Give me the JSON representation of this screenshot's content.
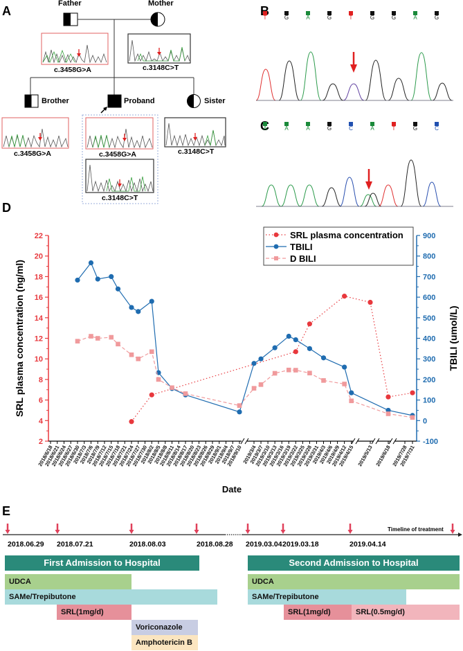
{
  "panels": {
    "A": "A",
    "B": "B",
    "C": "C",
    "D": "D",
    "E": "E"
  },
  "pedigree": {
    "father": "Father",
    "mother": "Mother",
    "brother": "Brother",
    "proband": "Proband",
    "sister": "Sister",
    "father_mutation": "c.3458G>A",
    "mother_mutation": "c.3148C>T",
    "brother_mutation": "c.3458G>A",
    "proband_mutation_1": "c.3458G>A",
    "proband_mutation_2": "c.3148C>T",
    "sister_mutation": "c.3148C>T",
    "colors": {
      "red_frame": "#e06060",
      "dark_frame": "#333333",
      "arrow": "#e02020"
    }
  },
  "panel_b": {
    "bases": [
      {
        "base": "T",
        "color": "#e02020"
      },
      {
        "base": "G",
        "color": "#111111"
      },
      {
        "base": "A",
        "color": "#1a8a3a"
      },
      {
        "base": "G",
        "color": "#111111"
      },
      {
        "base": "T",
        "color": "#e02020"
      },
      {
        "base": "G",
        "color": "#111111"
      },
      {
        "base": "G",
        "color": "#111111"
      },
      {
        "base": "A",
        "color": "#1a8a3a"
      },
      {
        "base": "G",
        "color": "#111111"
      }
    ]
  },
  "panel_c": {
    "bases": [
      {
        "base": "A",
        "color": "#1a8a3a"
      },
      {
        "base": "A",
        "color": "#1a8a3a"
      },
      {
        "base": "A",
        "color": "#1a8a3a"
      },
      {
        "base": "G",
        "color": "#111111"
      },
      {
        "base": "C",
        "color": "#2050b0"
      },
      {
        "base": "A",
        "color": "#1a8a3a"
      },
      {
        "base": "T",
        "color": "#e02020"
      },
      {
        "base": "G",
        "color": "#111111"
      },
      {
        "base": "C",
        "color": "#2050b0"
      }
    ]
  },
  "chart_data": {
    "type": "line",
    "title": "",
    "xlabel": "Date",
    "ylabel": "SRL plasma concentration (ng/ml)",
    "y2label": "TBILI (umol/L)",
    "ylim": [
      2,
      22
    ],
    "yticks": [
      "2",
      "4",
      "6",
      "8",
      "10",
      "12",
      "14",
      "16",
      "18",
      "20",
      "22"
    ],
    "y2lim": [
      -100,
      900
    ],
    "y2ticks": [
      "-100",
      "0",
      "100",
      "200",
      "300",
      "400",
      "500",
      "600",
      "700",
      "800",
      "900"
    ],
    "legend_position": "top-right",
    "grid": false,
    "categories": [
      "2018/6/18",
      "2018/6/21",
      "2018/6/24",
      "2018/6/27",
      "2018/6/30",
      "2018/7/3",
      "2018/7/6",
      "2018/7/9",
      "2018/7/12",
      "2018/7/15",
      "2018/7/18",
      "2018/7/21",
      "2018/7/24",
      "2018/7/27",
      "2018/7/30",
      "2018/8/2",
      "2018/8/5",
      "2018/8/8",
      "2018/8/11",
      "2018/8/14",
      "2018/8/17",
      "2018/8/20",
      "2018/8/23",
      "2018/8/26",
      "2018/8/29",
      "2018/9/1",
      "2018/9/4",
      "2018/9/7",
      "2018/9/10",
      "2019/3/4",
      "2019/3/7",
      "2019/3/10",
      "2019/3/13",
      "2019/3/16",
      "2019/3/19",
      "2019/3/22",
      "2019/3/25",
      "2019/3/28",
      "2019/3/31",
      "2019/4/3",
      "2019/4/6",
      "2019/4/9",
      "2019/4/12",
      "2019/4/15",
      "2019/5/13",
      "2019/6/18",
      "2019/7/28",
      "2019/7/31"
    ],
    "series": [
      {
        "name": "SRL plasma concentration",
        "axis": "left",
        "color": "#e8383d",
        "style": "dotted",
        "marker": "circle",
        "points": [
          [
            "2018/7/24",
            3.9
          ],
          [
            "2018/8/2",
            6.5
          ],
          [
            "2019/3/22",
            10.7
          ],
          [
            "2019/3/28",
            13.4
          ],
          [
            "2019/4/12",
            16.1
          ],
          [
            "2019/5/13",
            15.5
          ],
          [
            "2019/6/18",
            6.3
          ],
          [
            "2019/7/31",
            6.7
          ]
        ]
      },
      {
        "name": "TBILI",
        "axis": "right",
        "color": "#1f6cb0",
        "style": "solid",
        "marker": "circle",
        "points": [
          [
            "2018/6/30",
            683
          ],
          [
            "2018/7/6",
            767
          ],
          [
            "2018/7/9",
            688
          ],
          [
            "2018/7/15",
            700
          ],
          [
            "2018/7/18",
            640
          ],
          [
            "2018/7/24",
            550
          ],
          [
            "2018/7/27",
            530
          ],
          [
            "2018/8/2",
            580
          ],
          [
            "2018/8/5",
            233
          ],
          [
            "2018/8/11",
            156
          ],
          [
            "2018/8/17",
            125
          ],
          [
            "2018/9/10",
            42
          ],
          [
            "2019/3/4",
            278
          ],
          [
            "2019/3/7",
            300
          ],
          [
            "2019/3/13",
            354
          ],
          [
            "2019/3/19",
            410
          ],
          [
            "2019/3/22",
            393
          ],
          [
            "2019/3/28",
            350
          ],
          [
            "2019/4/3",
            305
          ],
          [
            "2019/4/12",
            260
          ],
          [
            "2019/4/15",
            135
          ],
          [
            "2019/6/18",
            50
          ],
          [
            "2019/7/31",
            25
          ]
        ]
      },
      {
        "name": "D BILI",
        "axis": "right",
        "color": "#f09a9c",
        "style": "dashed",
        "marker": "square",
        "points": [
          [
            "2018/6/30",
            386
          ],
          [
            "2018/7/6",
            410
          ],
          [
            "2018/7/9",
            400
          ],
          [
            "2018/7/15",
            405
          ],
          [
            "2018/7/18",
            372
          ],
          [
            "2018/7/24",
            320
          ],
          [
            "2018/7/27",
            300
          ],
          [
            "2018/8/2",
            335
          ],
          [
            "2018/8/5",
            200
          ],
          [
            "2018/8/11",
            160
          ],
          [
            "2018/8/17",
            131
          ],
          [
            "2018/9/10",
            73
          ],
          [
            "2019/3/4",
            157
          ],
          [
            "2019/3/7",
            175
          ],
          [
            "2019/3/13",
            230
          ],
          [
            "2019/3/19",
            246
          ],
          [
            "2019/3/22",
            245
          ],
          [
            "2019/3/28",
            231
          ],
          [
            "2019/4/3",
            195
          ],
          [
            "2019/4/12",
            178
          ],
          [
            "2019/4/15",
            96
          ],
          [
            "2019/6/18",
            33
          ],
          [
            "2019/7/31",
            15
          ]
        ]
      }
    ]
  },
  "timeline": {
    "title": "Timeline of treatment",
    "dates": [
      "2018.06.29",
      "2018.07.21",
      "2018.08.03",
      "2018.08.28",
      "2019.03.04",
      "2019.03.18",
      "2019.04.14"
    ],
    "first_admission": "First Admission to Hospital",
    "second_admission": "Second Admission to Hospital",
    "first_bars": [
      {
        "label": "UDCA",
        "color": "#a8d08d"
      },
      {
        "label": "SAMe/Trepibutone",
        "color": "#a8dadc"
      },
      {
        "label": "SRL(1mg/d)",
        "color": "#e6909a"
      },
      {
        "label": "Voriconazole",
        "color": "#c8cde3"
      },
      {
        "label": "Amphotericin B",
        "color": "#fbe5c0"
      }
    ],
    "second_bars": [
      {
        "label": "UDCA",
        "color": "#a8d08d"
      },
      {
        "label": "SAMe/Trepibutone",
        "color": "#a8dadc"
      },
      {
        "label": "SRL(1mg/d)",
        "color": "#e6909a"
      },
      {
        "label": "SRL(0.5mg/d)",
        "color": "#f2b5bc"
      }
    ],
    "admission_color": "#2a8a7a",
    "arrow_color": "#e0405a"
  }
}
